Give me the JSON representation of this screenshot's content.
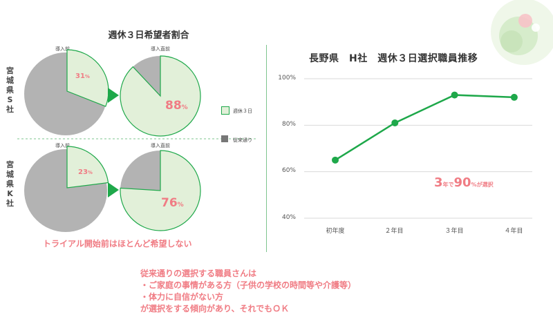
{
  "left_panel": {
    "title": "週休３日希望者割合",
    "company_s": {
      "side_label": "宮城県S社",
      "before_label": "導入前",
      "after_label": "導入直前",
      "before_pct": "31",
      "after_pct": "88",
      "pct_unit": "%"
    },
    "company_k": {
      "side_label": "宮城県K社",
      "before_label": "導入前",
      "after_label": "導入直前",
      "before_pct": "23",
      "after_pct": "76",
      "pct_unit": "%"
    },
    "legend": [
      {
        "label": "週休３日",
        "color": "#e2f0d9"
      },
      {
        "label": "従来通り",
        "color": "#777777"
      }
    ],
    "trial_note": "トライアル開始前はほとんど希望しない"
  },
  "chart_data": {
    "type": "line",
    "title": "長野県　H社　週休３日選択職員推移",
    "categories": [
      "初年度",
      "２年目",
      "３年目",
      "４年目"
    ],
    "series": [
      {
        "values": [
          65,
          81,
          93,
          92
        ],
        "color": "#1ea84a"
      }
    ],
    "ylim": [
      40,
      100
    ],
    "yticks": [
      "40%",
      "60%",
      "80%",
      "100%"
    ],
    "annotation": {
      "part1": "3",
      "part2": "年で",
      "part3": "90",
      "part4": "%が選択"
    }
  },
  "bottom_text": [
    "従来通りの選択する職員さんは",
    "・ご家庭の事情がある方（子供の学校の時間等や介護等）",
    "・体力に自信がない方",
    "が選択をする傾向があり、それでもＯＫ"
  ]
}
